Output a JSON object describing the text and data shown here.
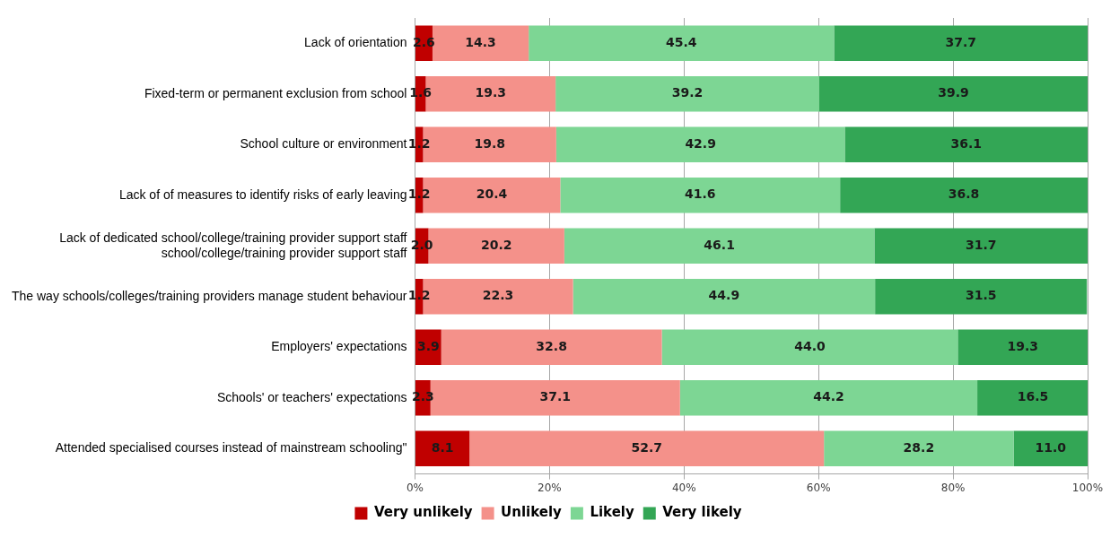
{
  "chart_data": {
    "type": "bar",
    "orientation": "horizontal",
    "stacked": true,
    "categories": [
      "Lack of orientation",
      "Fixed-term or permanent exclusion from school",
      "School culture or environment",
      "Lack of of measures to identify risks of early leaving",
      "Lack of dedicated school/college/training provider support staff\nschool/college/training provider support staff",
      "The way schools/colleges/training providers manage student behaviour",
      "Employers' expectations",
      "Schools' or teachers' expectations",
      "Attended specialised courses instead of mainstream schooling\""
    ],
    "series": [
      {
        "name": "Very unlikely",
        "color": "#c00000",
        "values": [
          2.6,
          1.6,
          1.2,
          1.2,
          2.0,
          1.2,
          3.9,
          2.3,
          8.1
        ],
        "value_labels": [
          "2.6",
          "1.6",
          "1.2",
          "1.2",
          "2.0",
          "1.2",
          "3.9",
          "2.3",
          "8.1"
        ]
      },
      {
        "name": "Unlikely",
        "color": "#f4918a",
        "values": [
          14.3,
          19.3,
          19.8,
          20.4,
          20.2,
          22.3,
          32.8,
          37.1,
          52.7
        ],
        "value_labels": [
          "14.3",
          "19.3",
          "19.8",
          "20.4",
          "20.2",
          "22.3",
          "32.8",
          "37.1",
          "52.7"
        ]
      },
      {
        "name": "Likely",
        "color": "#7dd694",
        "values": [
          45.4,
          39.2,
          42.9,
          41.6,
          46.1,
          44.9,
          44.0,
          44.2,
          28.2
        ],
        "value_labels": [
          "45.4",
          "39.2",
          "42.9",
          "41.6",
          "46.1",
          "44.9",
          "44.0",
          "44.2",
          "28.2"
        ]
      },
      {
        "name": "Very likely",
        "color": "#33a655",
        "values": [
          37.7,
          39.9,
          36.1,
          36.8,
          31.7,
          31.5,
          19.3,
          16.5,
          11.0
        ],
        "value_labels": [
          "37.7",
          "39.9",
          "36.1",
          "36.8",
          "31.7",
          "31.5",
          "19.3",
          "16.5",
          "11.0"
        ]
      }
    ],
    "xlim": [
      0,
      100
    ],
    "xticks": [
      {
        "value": 0,
        "label": "0%"
      },
      {
        "value": 20,
        "label": "20%"
      },
      {
        "value": 40,
        "label": "40%"
      },
      {
        "value": 60,
        "label": "60%"
      },
      {
        "value": 80,
        "label": "80%"
      },
      {
        "value": 100,
        "label": "100%"
      }
    ],
    "grid": "x",
    "legend": "bottom"
  }
}
